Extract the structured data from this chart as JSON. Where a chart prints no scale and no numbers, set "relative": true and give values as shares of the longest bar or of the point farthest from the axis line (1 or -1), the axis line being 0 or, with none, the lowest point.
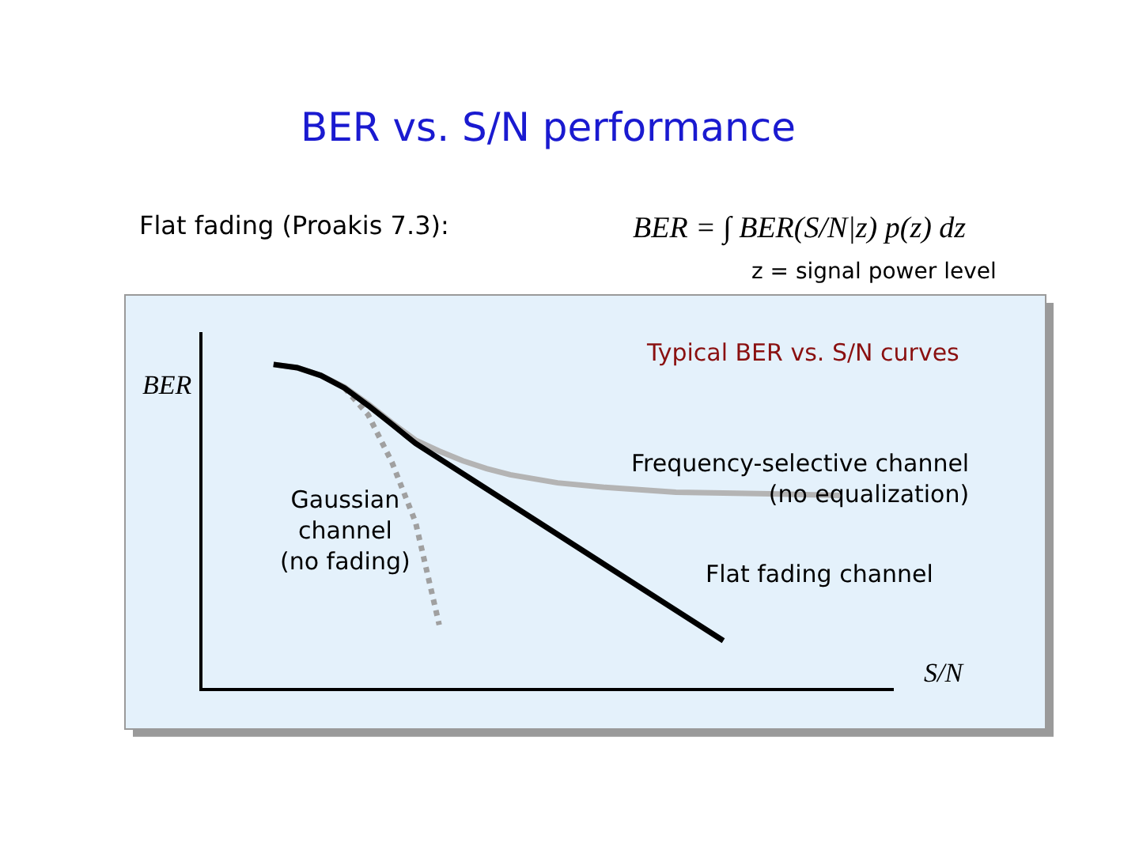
{
  "chart_data": {
    "type": "line",
    "relative": true,
    "title": "BER vs. S/N performance",
    "subtitle": "Flat fading (Proakis 7.3):",
    "xlabel": "S/N",
    "ylabel": "BER",
    "annotations": [
      "BER = ∫ BER(S/N|z) p(z) dz",
      "z = signal power level",
      "Typical BER vs. S/N curves"
    ],
    "categories": [
      null,
      null,
      null,
      null,
      null,
      null,
      null,
      null,
      null,
      null,
      null,
      null,
      null,
      null,
      null,
      null,
      null,
      null,
      null,
      null,
      null,
      null,
      null,
      null,
      null,
      null,
      null,
      null,
      null,
      null
    ],
    "series": [
      {
        "name": "Frequency-selective channel\n(no equalization)",
        "color": "#b4b4b4",
        "line_style": "solid",
        "values": [
          null,
          null,
          null,
          1.0,
          0.99,
          0.966,
          0.93,
          0.878,
          0.82,
          0.766,
          0.732,
          0.702,
          0.678,
          0.659,
          null,
          0.634,
          null,
          0.62,
          null,
          null,
          0.605,
          null,
          null,
          null,
          0.6,
          null,
          null,
          0.595,
          null,
          null
        ]
      },
      {
        "name": "Gaussian\nchannel\n(no fading)",
        "color": "#a0a0a0",
        "line_style": "dotted",
        "values": [
          null,
          null,
          null,
          null,
          null,
          null,
          0.927,
          0.844,
          0.698,
          0.512,
          0.195,
          null,
          null,
          null,
          null,
          null,
          null,
          null,
          null,
          null,
          null,
          null,
          null,
          null,
          null,
          null,
          null,
          null,
          null,
          null
        ]
      },
      {
        "name": "Flat fading channel",
        "color": "#000000",
        "line_style": "solid",
        "values": [
          null,
          null,
          null,
          1.0,
          0.99,
          0.966,
          0.927,
          0.873,
          0.815,
          0.756,
          null,
          null,
          null,
          null,
          null,
          null,
          null,
          null,
          null,
          null,
          null,
          null,
          0.146,
          null,
          null,
          null,
          null,
          null,
          null,
          null
        ]
      }
    ],
    "legend": false
  }
}
